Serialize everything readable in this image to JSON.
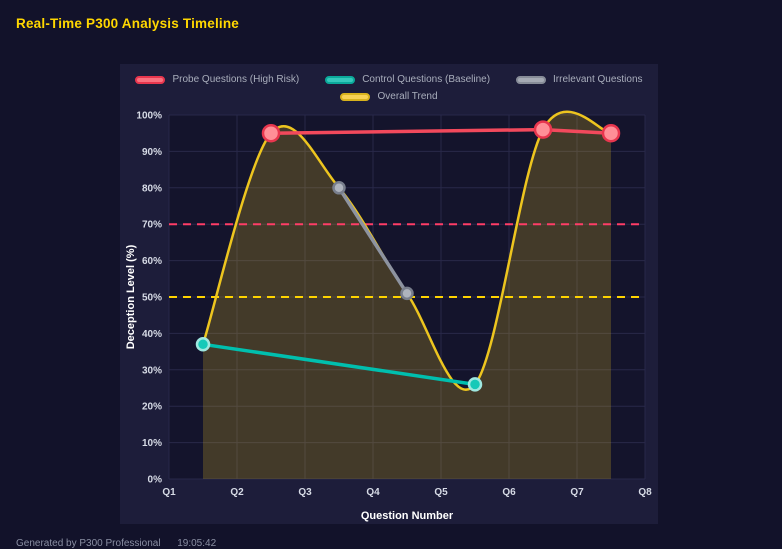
{
  "page": {
    "title": "Real-Time P300 Analysis Timeline",
    "footer": "Generated by P300 Professional      19:05:42"
  },
  "chart_data": {
    "type": "line",
    "title": "Real-Time P300 Analysis Timeline",
    "xlabel": "Question Number",
    "ylabel": "Deception Level (%)",
    "xlim": [
      1,
      8
    ],
    "ylim": [
      0,
      100
    ],
    "grid": true,
    "legend_position": "top",
    "x_ticks": [
      {
        "value": 1,
        "label": "Q1"
      },
      {
        "value": 2,
        "label": "Q2"
      },
      {
        "value": 3,
        "label": "Q3"
      },
      {
        "value": 4,
        "label": "Q4"
      },
      {
        "value": 5,
        "label": "Q5"
      },
      {
        "value": 6,
        "label": "Q6"
      },
      {
        "value": 7,
        "label": "Q7"
      },
      {
        "value": 8,
        "label": "Q8"
      }
    ],
    "y_ticks": [
      {
        "value": 0,
        "label": "0%"
      },
      {
        "value": 10,
        "label": "10%"
      },
      {
        "value": 20,
        "label": "20%"
      },
      {
        "value": 30,
        "label": "30%"
      },
      {
        "value": 40,
        "label": "40%"
      },
      {
        "value": 50,
        "label": "50%"
      },
      {
        "value": 60,
        "label": "60%"
      },
      {
        "value": 70,
        "label": "70%"
      },
      {
        "value": 80,
        "label": "80%"
      },
      {
        "value": 90,
        "label": "90%"
      },
      {
        "value": 100,
        "label": "100%"
      }
    ],
    "thresholds": [
      {
        "value": 70,
        "color": "#ff3d67"
      },
      {
        "value": 50,
        "color": "#ffd400"
      }
    ],
    "series": [
      {
        "name": "Probe Questions (High Risk)",
        "color": "#f2495c",
        "x": [
          2.5,
          6.5,
          7.5
        ],
        "y": [
          95,
          96,
          95
        ],
        "line_width": 3.5,
        "marker_radius": 8,
        "marker_fill": "#ff8f97",
        "marker_stroke": "#e8364e",
        "legend_row": 1,
        "draw_order": 4,
        "swatch_fill": "#f8717f",
        "swatch_border": "#e8364e"
      },
      {
        "name": "Control Questions (Baseline)",
        "color": "#00bfae",
        "x": [
          1.5,
          5.5
        ],
        "y": [
          37,
          26
        ],
        "line_width": 3.5,
        "marker_radius": 6,
        "marker_fill": "#17c9b8",
        "marker_stroke": "#9fe8e0",
        "legend_row": 1,
        "draw_order": 3,
        "swatch_fill": "#35c8ba",
        "swatch_border": "#0ba99a"
      },
      {
        "name": "Irrelevant Questions",
        "color": "#8d93a0",
        "x": [
          3.5,
          4.5
        ],
        "y": [
          80,
          51
        ],
        "line_width": 3.5,
        "marker_radius": 5.5,
        "marker_fill": "#aeb3bd",
        "marker_stroke": "#787e8c",
        "legend_row": 1,
        "draw_order": 2,
        "swatch_fill": "#a5aab4",
        "swatch_border": "#878c98"
      },
      {
        "name": "Overall Trend",
        "color": "#edc51f",
        "x": [
          1.5,
          2.5,
          3.5,
          4.5,
          5.5,
          6.5,
          7.5
        ],
        "y": [
          37,
          95,
          80,
          51,
          26,
          96,
          95
        ],
        "smooth": true,
        "area_fill": "rgba(237,197,31,0.22)",
        "line_width": 2.5,
        "marker_radius": 0,
        "legend_row": 2,
        "draw_order": 1,
        "swatch_fill": "#f7d154",
        "swatch_border": "#d8b21d"
      }
    ]
  }
}
